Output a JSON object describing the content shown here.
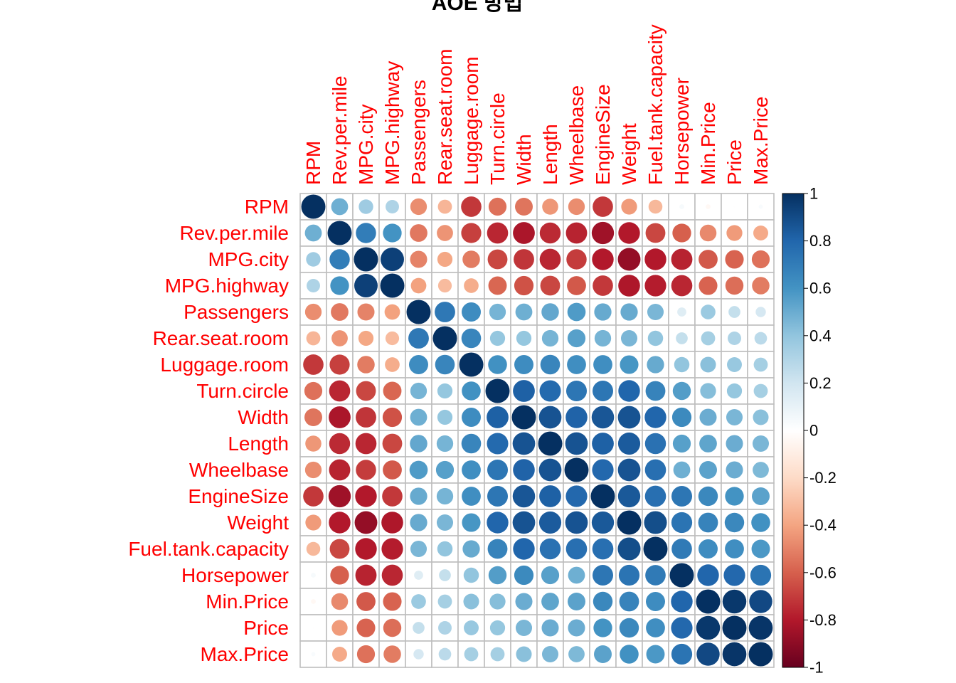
{
  "chart_data": {
    "type": "heatmap",
    "title": "AOE 방법",
    "variables": [
      "RPM",
      "Rev.per.mile",
      "MPG.city",
      "MPG.highway",
      "Passengers",
      "Rear.seat.room",
      "Luggage.room",
      "Turn.circle",
      "Width",
      "Length",
      "Wheelbase",
      "EngineSize",
      "Weight",
      "Fuel.tank.capacity",
      "Horsepower",
      "Min.Price",
      "Price",
      "Max.Price"
    ],
    "matrix": [
      [
        1.0,
        0.49,
        0.36,
        0.31,
        -0.47,
        -0.34,
        -0.71,
        -0.55,
        -0.54,
        -0.44,
        -0.47,
        -0.71,
        -0.43,
        -0.33,
        0.04,
        -0.04,
        -0.005,
        0.03
      ],
      [
        0.49,
        1.0,
        0.7,
        0.6,
        -0.53,
        -0.45,
        -0.69,
        -0.76,
        -0.82,
        -0.75,
        -0.77,
        -0.85,
        -0.8,
        -0.67,
        -0.6,
        -0.48,
        -0.43,
        -0.38
      ],
      [
        0.36,
        0.7,
        1.0,
        0.94,
        -0.5,
        -0.39,
        -0.52,
        -0.67,
        -0.72,
        -0.76,
        -0.7,
        -0.8,
        -0.88,
        -0.8,
        -0.77,
        -0.62,
        -0.59,
        -0.55
      ],
      [
        0.31,
        0.6,
        0.94,
        1.0,
        -0.41,
        -0.32,
        -0.37,
        -0.58,
        -0.64,
        -0.67,
        -0.62,
        -0.71,
        -0.81,
        -0.79,
        -0.76,
        -0.59,
        -0.56,
        -0.52
      ],
      [
        -0.47,
        -0.53,
        -0.5,
        -0.41,
        1.0,
        0.72,
        0.63,
        0.47,
        0.49,
        0.52,
        0.57,
        0.51,
        0.51,
        0.46,
        0.14,
        0.37,
        0.24,
        0.18
      ],
      [
        -0.34,
        -0.45,
        -0.39,
        -0.32,
        0.72,
        1.0,
        0.66,
        0.39,
        0.39,
        0.47,
        0.55,
        0.47,
        0.46,
        0.4,
        0.24,
        0.34,
        0.31,
        0.27
      ],
      [
        -0.71,
        -0.69,
        -0.52,
        -0.37,
        0.63,
        0.66,
        1.0,
        0.61,
        0.63,
        0.66,
        0.62,
        0.62,
        0.59,
        0.51,
        0.4,
        0.42,
        0.38,
        0.34
      ],
      [
        -0.55,
        -0.76,
        -0.67,
        -0.58,
        0.47,
        0.39,
        0.61,
        1.0,
        0.82,
        0.78,
        0.73,
        0.73,
        0.8,
        0.67,
        0.56,
        0.43,
        0.39,
        0.34
      ],
      [
        -0.54,
        -0.82,
        -0.72,
        -0.64,
        0.49,
        0.39,
        0.63,
        0.82,
        1.0,
        0.87,
        0.81,
        0.86,
        0.87,
        0.8,
        0.64,
        0.5,
        0.46,
        0.42
      ],
      [
        -0.44,
        -0.75,
        -0.76,
        -0.67,
        0.52,
        0.47,
        0.66,
        0.78,
        0.87,
        1.0,
        0.87,
        0.82,
        0.84,
        0.75,
        0.55,
        0.53,
        0.5,
        0.46
      ],
      [
        -0.47,
        -0.77,
        -0.7,
        -0.62,
        0.57,
        0.55,
        0.62,
        0.73,
        0.81,
        0.87,
        1.0,
        0.79,
        0.87,
        0.76,
        0.49,
        0.54,
        0.5,
        0.45
      ],
      [
        -0.71,
        -0.85,
        -0.8,
        -0.71,
        0.51,
        0.47,
        0.62,
        0.73,
        0.86,
        0.82,
        0.79,
        1.0,
        0.85,
        0.76,
        0.73,
        0.65,
        0.6,
        0.54
      ],
      [
        -0.43,
        -0.8,
        -0.88,
        -0.81,
        0.51,
        0.46,
        0.59,
        0.8,
        0.87,
        0.84,
        0.87,
        0.85,
        1.0,
        0.89,
        0.74,
        0.67,
        0.65,
        0.61
      ],
      [
        -0.33,
        -0.67,
        -0.8,
        -0.79,
        0.46,
        0.4,
        0.51,
        0.67,
        0.8,
        0.75,
        0.76,
        0.76,
        0.89,
        1.0,
        0.71,
        0.63,
        0.62,
        0.58
      ],
      [
        0.04,
        -0.6,
        -0.77,
        -0.76,
        0.14,
        0.24,
        0.4,
        0.56,
        0.64,
        0.55,
        0.49,
        0.73,
        0.74,
        0.71,
        1.0,
        0.8,
        0.79,
        0.74
      ],
      [
        -0.04,
        -0.48,
        -0.62,
        -0.59,
        0.37,
        0.34,
        0.42,
        0.43,
        0.5,
        0.53,
        0.54,
        0.65,
        0.67,
        0.63,
        0.8,
        1.0,
        0.97,
        0.91
      ],
      [
        -0.005,
        -0.43,
        -0.59,
        -0.56,
        0.24,
        0.31,
        0.38,
        0.39,
        0.46,
        0.5,
        0.5,
        0.6,
        0.65,
        0.62,
        0.79,
        0.97,
        1.0,
        0.98
      ],
      [
        0.03,
        -0.38,
        -0.55,
        -0.52,
        0.18,
        0.27,
        0.34,
        0.34,
        0.42,
        0.46,
        0.45,
        0.54,
        0.61,
        0.58,
        0.74,
        0.91,
        0.98,
        1.0
      ]
    ],
    "colorbar_ticks": [
      "1",
      "0.8",
      "0.6",
      "0.4",
      "0.2",
      "0",
      "-0.2",
      "-0.4",
      "-0.6",
      "-0.8",
      "-1"
    ],
    "colorscale": [
      "#67001F",
      "#B2182B",
      "#D6604D",
      "#F4A582",
      "#FDDBC7",
      "#FFFFFF",
      "#D1E5F0",
      "#92C5DE",
      "#4393C3",
      "#2166AC",
      "#053061"
    ],
    "label_color": "#FF0000",
    "grid": true,
    "legend": "right"
  }
}
